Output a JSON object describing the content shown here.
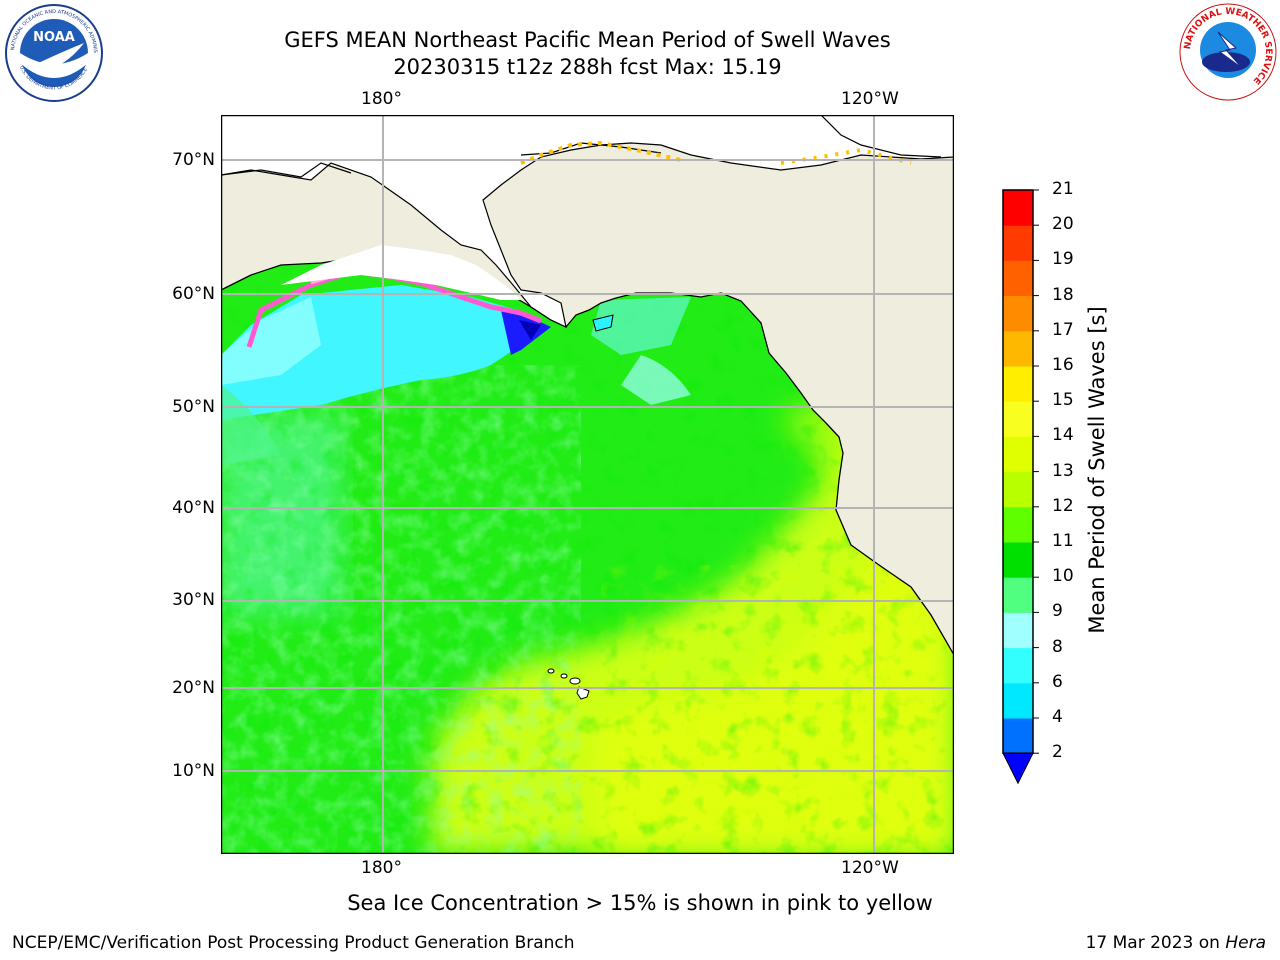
{
  "header": {
    "title_line1": "GEFS MEAN Northeast Pacific Mean Period of Swell Waves",
    "title_line2": "20230315 t12z 288h fcst   Max: 15.19"
  },
  "logos": {
    "noaa_text": "NOAA",
    "noaa_ring": "NATIONAL OCEANIC AND ATMOSPHERIC ADMINISTRATION",
    "noaa_ring_bottom": "U.S. DEPARTMENT OF COMMERCE",
    "nws_ring": "NATIONAL WEATHER SERVICE"
  },
  "map": {
    "lon_labels": [
      "180°",
      "120°W"
    ],
    "lat_labels": [
      "70°N",
      "60°N",
      "50°N",
      "40°N",
      "30°N",
      "20°N",
      "10°N"
    ],
    "land_color": "#efedde",
    "grid_color": "#b4b4b4"
  },
  "colorbar": {
    "title": "Mean Period of Swell Waves [s]",
    "levels": [
      "2",
      "4",
      "6",
      "8",
      "9",
      "10",
      "11",
      "12",
      "13",
      "14",
      "15",
      "16",
      "17",
      "18",
      "19",
      "20",
      "21"
    ],
    "colors": [
      "#0070ff",
      "#00e8ff",
      "#33ffff",
      "#a0ffff",
      "#50ff80",
      "#00e000",
      "#60ff00",
      "#b8ff00",
      "#e0ff00",
      "#f8ff20",
      "#ffee00",
      "#ffb800",
      "#ff8c00",
      "#ff6000",
      "#ff3a00",
      "#ff0000"
    ],
    "extend_color": "#0000ff"
  },
  "note": "Sea Ice Concentration > 15% is shown in pink to yellow",
  "footer": {
    "left": "NCEP/EMC/Verification Post Processing Product Generation Branch",
    "right_prefix": "17 Mar 2023 on ",
    "right_host": "Hera"
  }
}
